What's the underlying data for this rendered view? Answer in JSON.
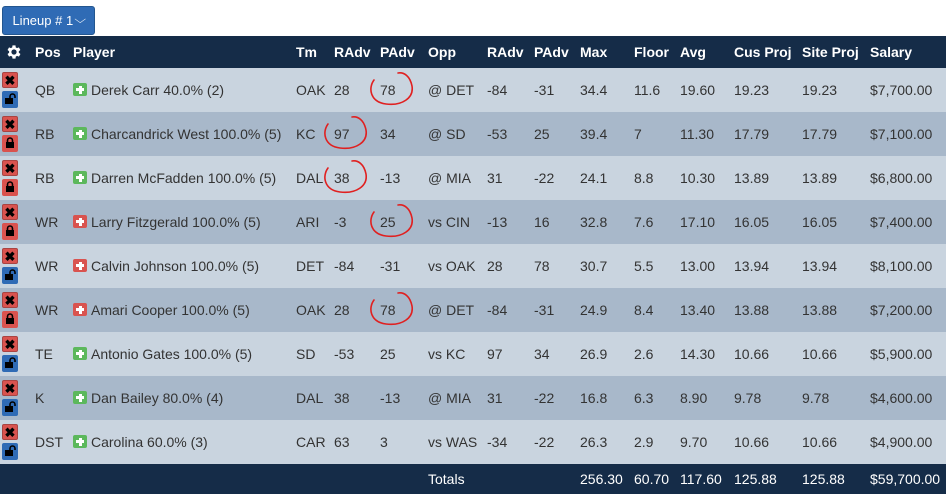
{
  "lineup_button": {
    "label": "Lineup # 1"
  },
  "columns": [
    "Pos",
    "Player",
    "Tm",
    "RAdv",
    "PAdv",
    "Opp",
    "RAdv",
    "PAdv",
    "Max",
    "Floor",
    "Avg",
    "Cus Proj",
    "Site Proj",
    "Salary"
  ],
  "rows": [
    {
      "pos": "QB",
      "player": "Derek Carr 40.0% (2)",
      "status": "green",
      "locked": false,
      "tm": "OAK",
      "radv": "28",
      "padv": "78",
      "opp": "@ DET",
      "oradv": "-84",
      "opadv": "-31",
      "max": "34.4",
      "floor": "11.6",
      "avg": "19.60",
      "cus": "19.23",
      "site": "19.23",
      "salary": "$7,700.00",
      "circled": "padv"
    },
    {
      "pos": "RB",
      "player": "Charcandrick West 100.0% (5)",
      "status": "green",
      "locked": true,
      "tm": "KC",
      "radv": "97",
      "padv": "34",
      "opp": "@ SD",
      "oradv": "-53",
      "opadv": "25",
      "max": "39.4",
      "floor": "7",
      "avg": "11.30",
      "cus": "17.79",
      "site": "17.79",
      "salary": "$7,100.00",
      "circled": "radv"
    },
    {
      "pos": "RB",
      "player": "Darren McFadden 100.0% (5)",
      "status": "green",
      "locked": true,
      "tm": "DAL",
      "radv": "38",
      "padv": "-13",
      "opp": "@ MIA",
      "oradv": "31",
      "opadv": "-22",
      "max": "24.1",
      "floor": "8.8",
      "avg": "10.30",
      "cus": "13.89",
      "site": "13.89",
      "salary": "$6,800.00",
      "circled": "radv"
    },
    {
      "pos": "WR",
      "player": "Larry Fitzgerald 100.0% (5)",
      "status": "red",
      "locked": true,
      "tm": "ARI",
      "radv": "-3",
      "padv": "25",
      "opp": "vs CIN",
      "oradv": "-13",
      "opadv": "16",
      "max": "32.8",
      "floor": "7.6",
      "avg": "17.10",
      "cus": "16.05",
      "site": "16.05",
      "salary": "$7,400.00",
      "circled": "padv"
    },
    {
      "pos": "WR",
      "player": "Calvin Johnson 100.0% (5)",
      "status": "red",
      "locked": false,
      "tm": "DET",
      "radv": "-84",
      "padv": "-31",
      "opp": "vs OAK",
      "oradv": "28",
      "opadv": "78",
      "max": "30.7",
      "floor": "5.5",
      "avg": "13.00",
      "cus": "13.94",
      "site": "13.94",
      "salary": "$8,100.00",
      "circled": ""
    },
    {
      "pos": "WR",
      "player": "Amari Cooper 100.0% (5)",
      "status": "red",
      "locked": true,
      "tm": "OAK",
      "radv": "28",
      "padv": "78",
      "opp": "@ DET",
      "oradv": "-84",
      "opadv": "-31",
      "max": "24.9",
      "floor": "8.4",
      "avg": "13.40",
      "cus": "13.88",
      "site": "13.88",
      "salary": "$7,200.00",
      "circled": "padv"
    },
    {
      "pos": "TE",
      "player": "Antonio Gates 100.0% (5)",
      "status": "green",
      "locked": false,
      "tm": "SD",
      "radv": "-53",
      "padv": "25",
      "opp": "vs KC",
      "oradv": "97",
      "opadv": "34",
      "max": "26.9",
      "floor": "2.6",
      "avg": "14.30",
      "cus": "10.66",
      "site": "10.66",
      "salary": "$5,900.00",
      "circled": ""
    },
    {
      "pos": "K",
      "player": "Dan Bailey 80.0% (4)",
      "status": "green",
      "locked": false,
      "tm": "DAL",
      "radv": "38",
      "padv": "-13",
      "opp": "@ MIA",
      "oradv": "31",
      "opadv": "-22",
      "max": "16.8",
      "floor": "6.3",
      "avg": "8.90",
      "cus": "9.78",
      "site": "9.78",
      "salary": "$4,600.00",
      "circled": ""
    },
    {
      "pos": "DST",
      "player": "Carolina 60.0% (3)",
      "status": "green",
      "locked": false,
      "tm": "CAR",
      "radv": "63",
      "padv": "3",
      "opp": "vs WAS",
      "oradv": "-34",
      "opadv": "-22",
      "max": "26.3",
      "floor": "2.9",
      "avg": "9.70",
      "cus": "10.66",
      "site": "10.66",
      "salary": "$4,900.00",
      "circled": ""
    }
  ],
  "totals": {
    "label": "Totals",
    "max": "256.30",
    "floor": "60.70",
    "avg": "117.60",
    "cus": "125.88",
    "site": "125.88",
    "salary": "$59,700.00"
  },
  "colors": {
    "header": "#152c48",
    "row_light": "#c9d4df",
    "row_dark": "#a8b8ca",
    "button": "#2f6bb5",
    "remove": "#d9534f",
    "annotation": "#e02020"
  }
}
